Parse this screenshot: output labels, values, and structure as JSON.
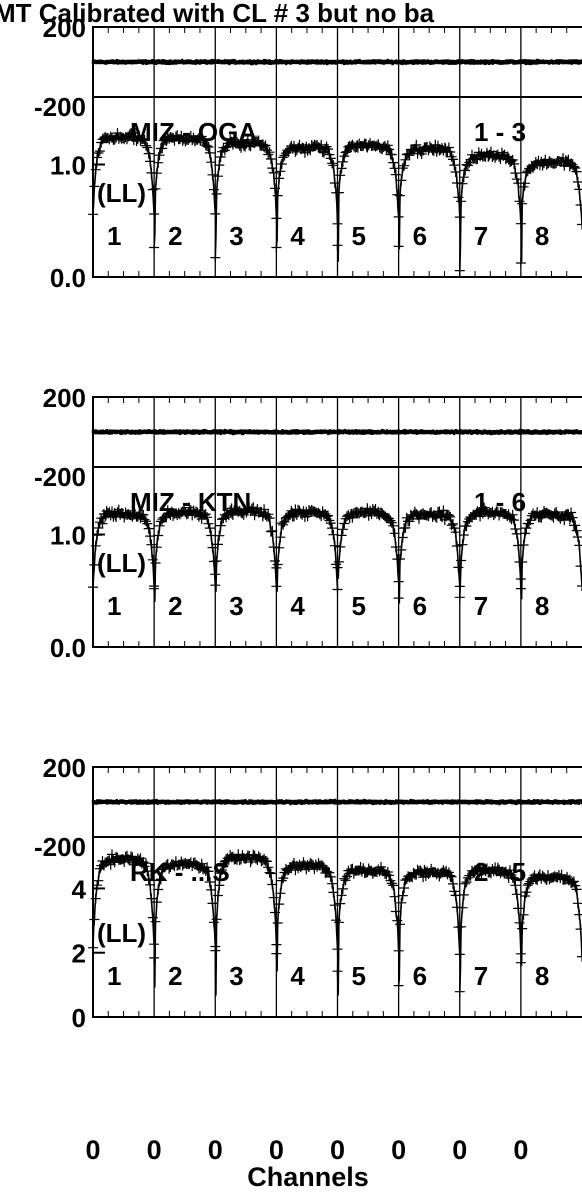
{
  "chart_data": {
    "type": "scatter",
    "title": "MT Calibrated with CL # 3 but no ba",
    "xlabel": "Channels",
    "channel_tick_labels": [
      "0",
      "0",
      "0",
      "0",
      "0",
      "0",
      "0",
      "0"
    ],
    "phase_tick_labels": [
      "200",
      "-200"
    ],
    "panels": [
      {
        "baseline": "MIZ - OGA",
        "baseline_number": "1 - 3",
        "polarization": "(LL)",
        "spw_labels": [
          "1",
          "2",
          "3",
          "4",
          "5",
          "6",
          "7",
          "8"
        ],
        "phase_range": [
          -200,
          200
        ],
        "amplitude_range": [
          0,
          1.6
        ],
        "amplitude_ticks": [
          {
            "value": 0,
            "label": "0.0"
          },
          {
            "value": 1,
            "label": "1.0"
          }
        ],
        "spw_mean_amplitude": [
          1.24,
          1.23,
          1.19,
          1.15,
          1.17,
          1.14,
          1.08,
          1.02
        ],
        "dip_amplitude": 0.05,
        "phase_mean": 0
      },
      {
        "baseline": "MIZ - KTN",
        "baseline_number": "1 - 6",
        "polarization": "(LL)",
        "spw_labels": [
          "1",
          "2",
          "3",
          "4",
          "5",
          "6",
          "7",
          "8"
        ],
        "phase_range": [
          -200,
          200
        ],
        "amplitude_range": [
          0,
          1.6
        ],
        "amplitude_ticks": [
          {
            "value": 0,
            "label": "0.0"
          },
          {
            "value": 1,
            "label": "1.0"
          }
        ],
        "spw_mean_amplitude": [
          1.18,
          1.19,
          1.2,
          1.19,
          1.19,
          1.18,
          1.19,
          1.18
        ],
        "dip_amplitude": 0.35,
        "phase_mean": 0
      },
      {
        "baseline": "RK - ...S",
        "baseline_number": "2 - 5",
        "polarization": "(LL)",
        "spw_labels": [
          "1",
          "2",
          "3",
          "4",
          "5",
          "6",
          "7",
          "8"
        ],
        "phase_range": [
          -200,
          200
        ],
        "amplitude_range": [
          0,
          5.6
        ],
        "amplitude_ticks": [
          {
            "value": 0,
            "label": "0"
          },
          {
            "value": 2,
            "label": "2"
          },
          {
            "value": 4,
            "label": "4"
          }
        ],
        "spw_mean_amplitude": [
          4.9,
          4.75,
          4.95,
          4.7,
          4.55,
          4.5,
          4.55,
          4.35
        ],
        "dip_amplitude": 0.6,
        "phase_mean": 0
      }
    ]
  }
}
